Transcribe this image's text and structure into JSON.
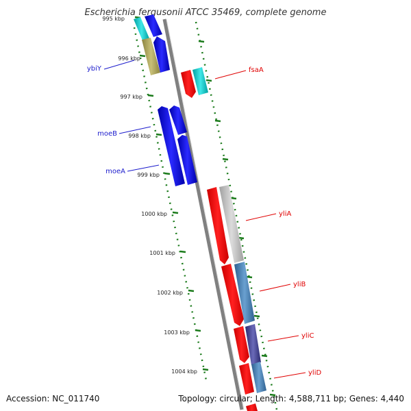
{
  "title": "Escherichia fergusonii ATCC 35469, complete genome",
  "footer": {
    "accession": "Accession: NC_011740",
    "topology": "Topology: circular; Length: 4,588,711 bp; Genes: 4,440"
  },
  "ticks": [
    "995 kbp",
    "996 kbp",
    "997 kbp",
    "998 kbp",
    "999 kbp",
    "1000 kbp",
    "1001 kbp",
    "1002 kbp",
    "1003 kbp",
    "1004 kbp"
  ],
  "genes": {
    "left": [
      "ybiY",
      "moeB",
      "moeA"
    ],
    "right": [
      "fsaA",
      "yliA",
      "yliB",
      "yliC",
      "yliD"
    ]
  },
  "colors": {
    "forward_gene": "#ff0000",
    "reverse_gene": "#0000ee",
    "tick_green": "#1a7a1a",
    "backbone": "#808080",
    "cyan_feature": "#00cccc",
    "olive_feature": "#b0a860",
    "grey_feature": "#c0c0c0",
    "steelblue_feature": "#4682b4",
    "slate_feature": "#4a4a9a"
  }
}
